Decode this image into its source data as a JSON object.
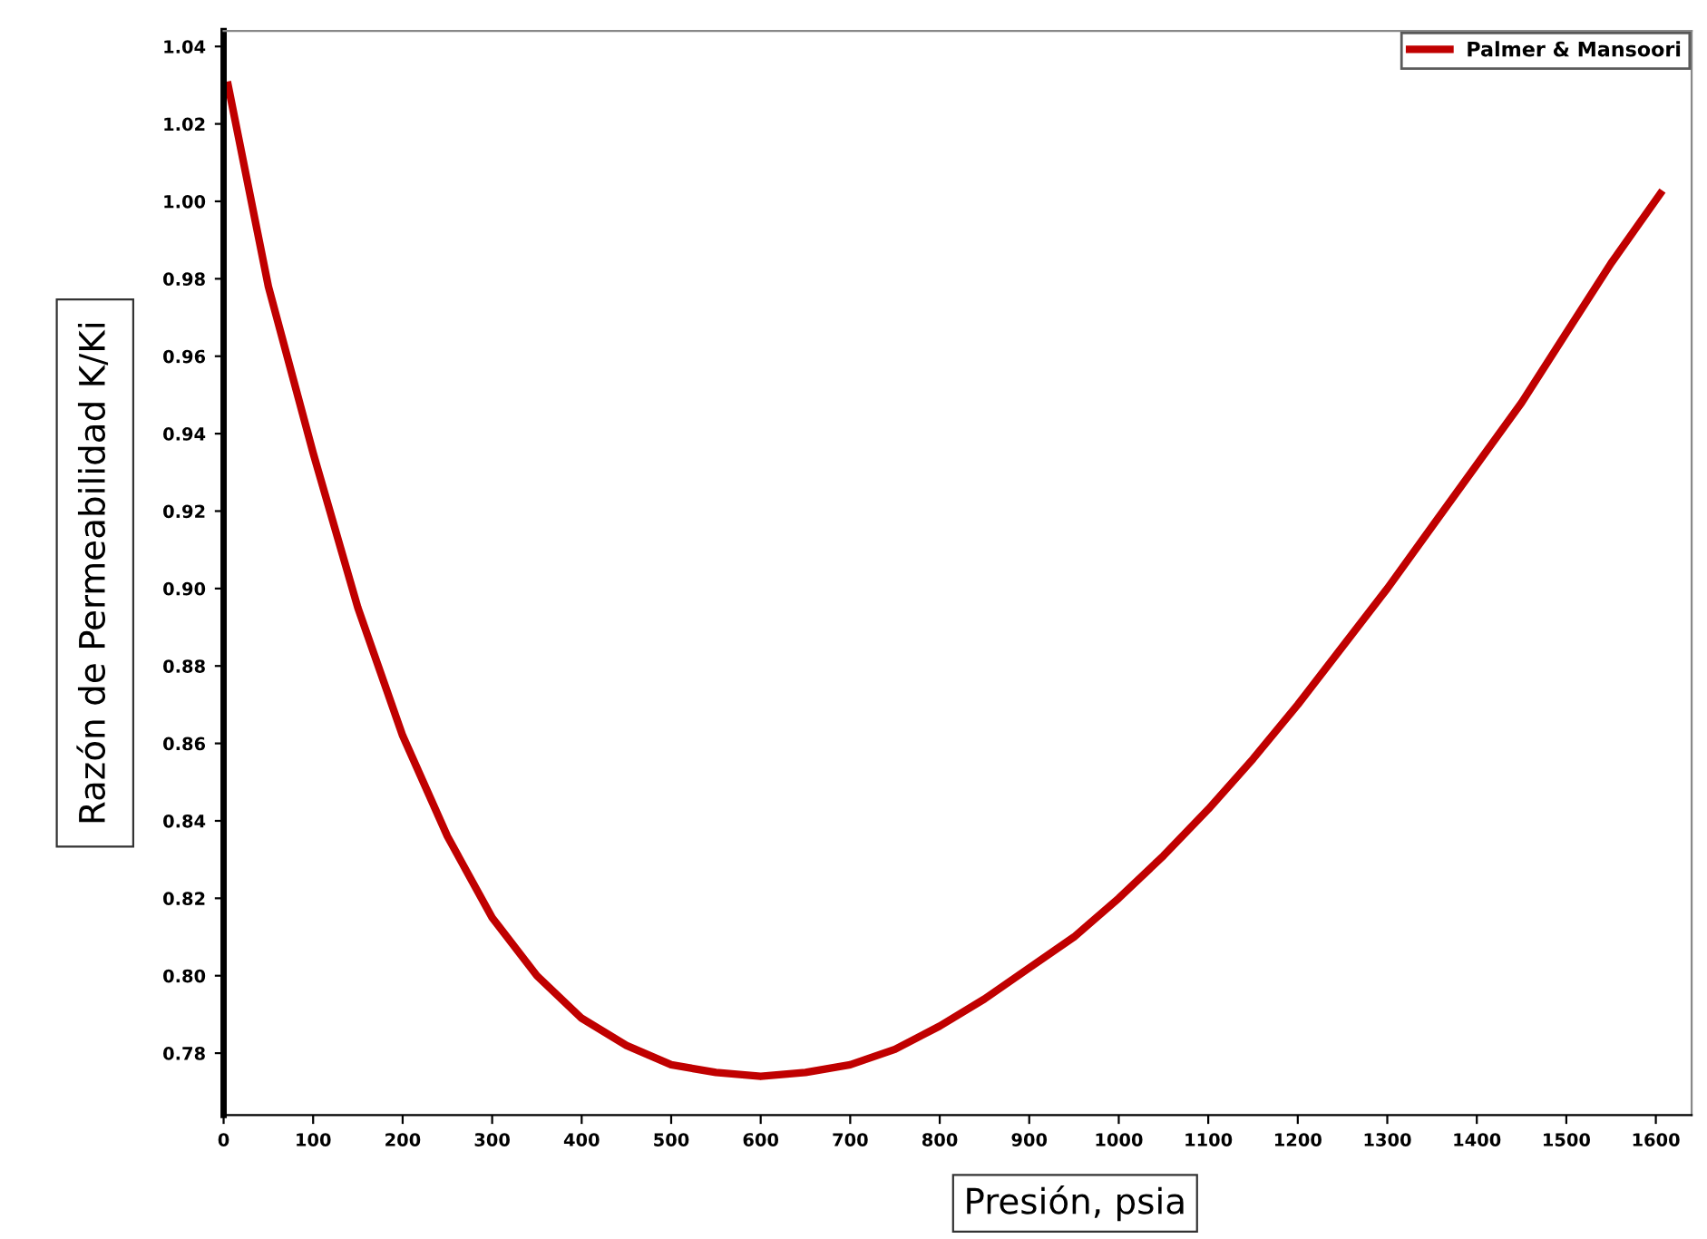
{
  "chart_data": {
    "type": "line",
    "xlabel": "Presión, psia",
    "ylabel": "Razón de Permeabilidad K/Ki",
    "x": [
      5,
      50,
      100,
      150,
      200,
      250,
      300,
      350,
      400,
      450,
      500,
      550,
      600,
      650,
      700,
      750,
      800,
      850,
      900,
      950,
      1000,
      1050,
      1100,
      1150,
      1200,
      1250,
      1300,
      1350,
      1400,
      1450,
      1500,
      1550,
      1605
    ],
    "series": [
      {
        "name": "Palmer & Mansoori",
        "color": "#c00000",
        "values": [
          1.03,
          0.978,
          0.935,
          0.895,
          0.862,
          0.836,
          0.815,
          0.8,
          0.789,
          0.782,
          0.777,
          0.775,
          0.774,
          0.775,
          0.777,
          0.781,
          0.787,
          0.794,
          0.802,
          0.81,
          0.82,
          0.831,
          0.843,
          0.856,
          0.87,
          0.885,
          0.9,
          0.916,
          0.932,
          0.948,
          0.966,
          0.984,
          1.002
        ]
      }
    ],
    "xlim": [
      0,
      1640
    ],
    "ylim": [
      0.764,
      1.044
    ],
    "xticks": [
      0,
      100,
      200,
      300,
      400,
      500,
      600,
      700,
      800,
      900,
      1000,
      1100,
      1200,
      1300,
      1400,
      1500,
      1600
    ],
    "yticks": [
      {
        "value": 0.78,
        "label": "0.78"
      },
      {
        "value": 0.8,
        "label": "0.80"
      },
      {
        "value": 0.82,
        "label": "0.82"
      },
      {
        "value": 0.84,
        "label": "0.84"
      },
      {
        "value": 0.86,
        "label": "0.86"
      },
      {
        "value": 0.88,
        "label": "0.88"
      },
      {
        "value": 0.9,
        "label": "0.90"
      },
      {
        "value": 0.92,
        "label": "0.92"
      },
      {
        "value": 0.94,
        "label": "0.94"
      },
      {
        "value": 0.96,
        "label": "0.96"
      },
      {
        "value": 0.98,
        "label": "0.98"
      },
      {
        "value": 1.0,
        "label": "1.00"
      },
      {
        "value": 1.02,
        "label": "1.02"
      },
      {
        "value": 1.04,
        "label": "1.04"
      }
    ],
    "grid": false,
    "legend": "top right",
    "marker": "none",
    "line_style": "solid"
  }
}
